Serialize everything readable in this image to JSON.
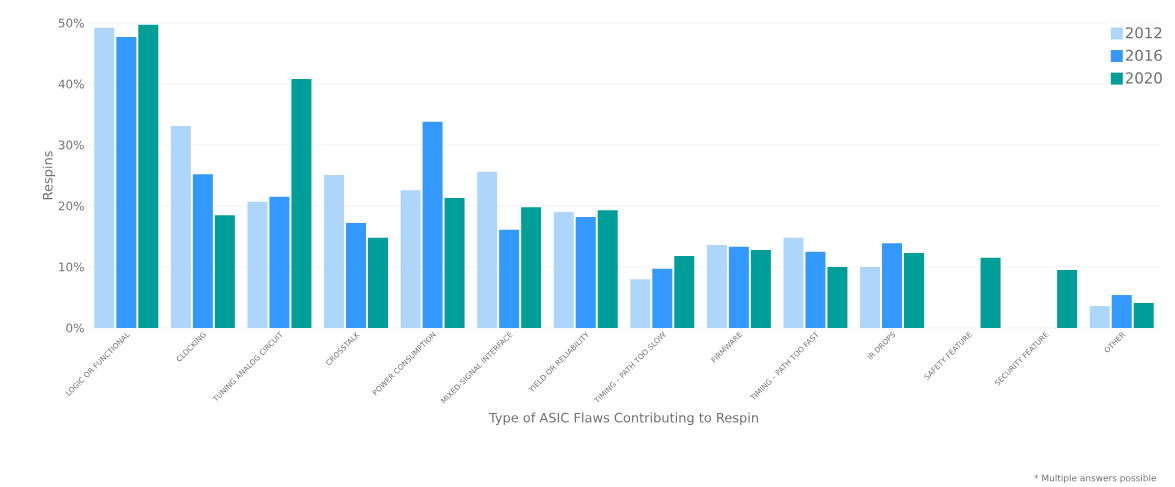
{
  "chart_data": {
    "type": "bar",
    "xlabel": "Type of ASIC Flaws Contributing to Respin",
    "ylabel": "Respins",
    "categories": [
      "LOGIC OR FUNCTIONAL",
      "CLOCKING",
      "TUNING ANALOG CIRCUIT",
      "CROSSTALK",
      "POWER CONSUMPTION",
      "MIXED-SIGNAL INTERFACE",
      "YIELD OR RELIABILITY",
      "TIMING – PATH TOO SLOW",
      "FIRMWARE",
      "TIMING – PATH TOO FAST",
      "IR DROPS",
      "SAFETY FEATURE",
      "SECURITY FEATURE",
      "OTHER"
    ],
    "series": [
      {
        "name": "2012",
        "color": "#aed6fb",
        "values": [
          49.2,
          33.1,
          20.7,
          25.1,
          22.6,
          25.6,
          19.0,
          8.0,
          13.6,
          14.8,
          10.0,
          null,
          null,
          3.6
        ]
      },
      {
        "name": "2016",
        "color": "#3399ff",
        "values": [
          47.7,
          25.2,
          21.5,
          17.2,
          33.8,
          16.1,
          18.2,
          9.7,
          13.3,
          12.5,
          13.9,
          null,
          null,
          5.4
        ]
      },
      {
        "name": "2020",
        "color": "#009e99",
        "values": [
          49.7,
          18.5,
          40.8,
          14.8,
          21.3,
          19.8,
          19.3,
          11.8,
          12.8,
          10.0,
          12.3,
          11.5,
          9.5,
          4.1
        ]
      }
    ],
    "ylim": [
      0,
      50
    ],
    "yticks": [
      {
        "value": 0,
        "label": "0%"
      },
      {
        "value": 10,
        "label": "10%"
      },
      {
        "value": 20,
        "label": "20%"
      },
      {
        "value": 30,
        "label": "30%"
      },
      {
        "value": 40,
        "label": "40%"
      },
      {
        "value": 50,
        "label": "50%"
      }
    ],
    "grid": "y",
    "legend": "top right",
    "annotations": [
      "* Multiple answers possible"
    ]
  }
}
